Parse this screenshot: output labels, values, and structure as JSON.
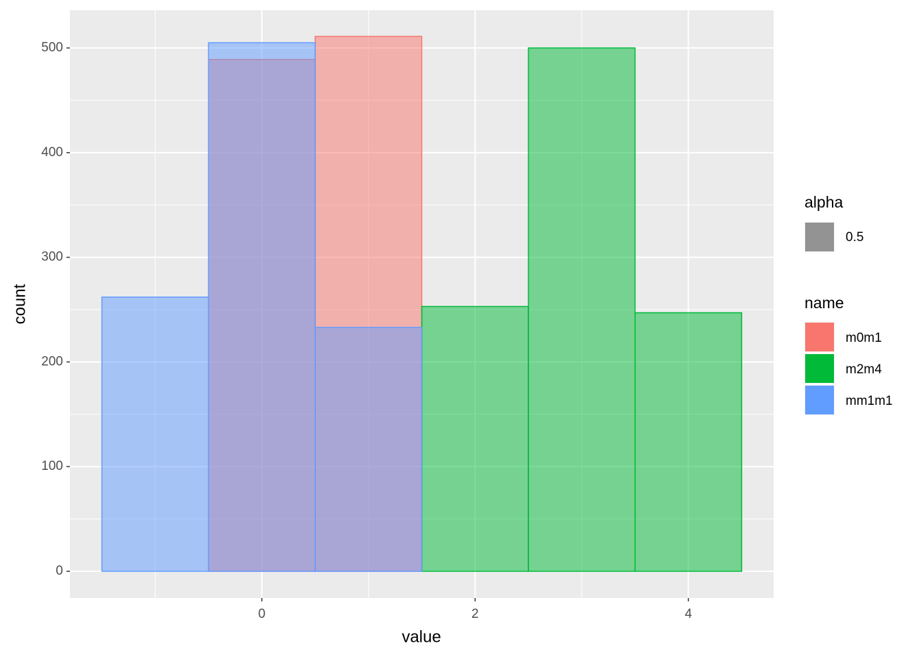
{
  "chart_data": {
    "type": "histogram",
    "x_label": "value",
    "y_label": "count",
    "bins": [
      -1.5,
      -0.5,
      0.5,
      1.5,
      2.5,
      3.5,
      4.5
    ],
    "series": [
      {
        "name": "m0m1",
        "color": "#F8766D",
        "values": [
          0,
          489,
          511,
          0,
          0,
          0
        ]
      },
      {
        "name": "m2m4",
        "color": "#00BA38",
        "values": [
          0,
          0,
          0,
          253,
          500,
          247
        ]
      },
      {
        "name": "mm1m1",
        "color": "#619CFF",
        "values": [
          262,
          505,
          233,
          0,
          0,
          0
        ]
      }
    ],
    "alpha": 0.5,
    "alpha_legend": {
      "title": "alpha",
      "label": "0.5"
    },
    "legend_title": "name",
    "xlim": [
      -1.8,
      4.8
    ],
    "ylim": [
      -25.5,
      536
    ],
    "xticks": [
      0,
      2,
      4
    ],
    "yticks": [
      0,
      100,
      200,
      300,
      400,
      500
    ],
    "minor_xticks": [
      -1,
      1,
      3
    ],
    "minor_yticks": [
      50,
      150,
      250,
      350,
      450
    ],
    "grid": true,
    "legend_position": "right"
  }
}
